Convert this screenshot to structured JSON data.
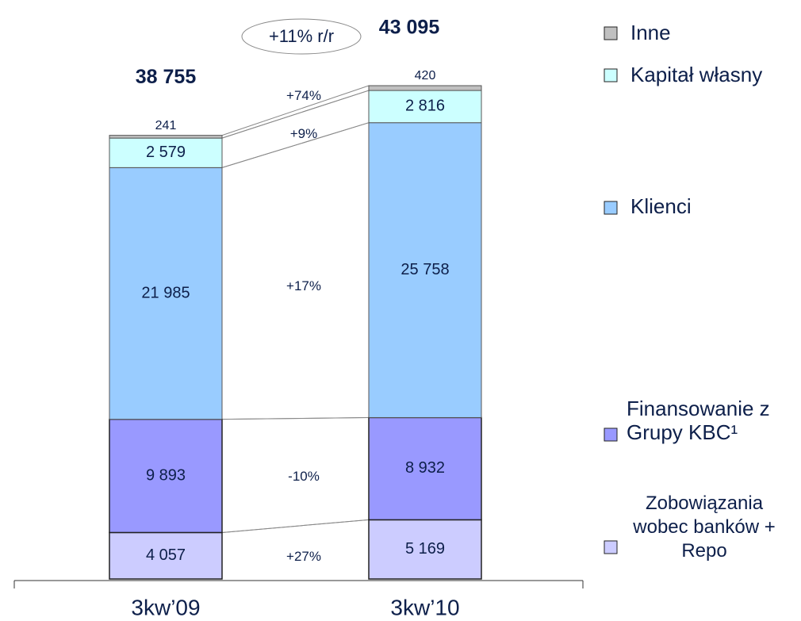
{
  "chart_data": {
    "type": "bar",
    "stacked": true,
    "categories": [
      "3kw’09",
      "3kw’10"
    ],
    "series": [
      {
        "name": "Zobowiązania wobec banków + Repo",
        "color": "#ccccff",
        "values": [
          4057,
          5169
        ],
        "value_labels": [
          "4 057",
          "5 169"
        ]
      },
      {
        "name": "Finansowanie z Grupy KBC¹",
        "color": "#9999ff",
        "values": [
          9893,
          8932
        ],
        "value_labels": [
          "9 893",
          "8 932"
        ]
      },
      {
        "name": "Klienci",
        "color": "#99ccff",
        "values": [
          21985,
          25758
        ],
        "value_labels": [
          "21 985",
          "25 758"
        ]
      },
      {
        "name": "Kapitał własny",
        "color": "#ccffff",
        "values": [
          2579,
          2816
        ],
        "value_labels": [
          "2 579",
          "2 816"
        ]
      },
      {
        "name": "Inne",
        "color": "#c0c0c0",
        "values": [
          241,
          420
        ],
        "value_labels": [
          "241",
          "420"
        ]
      }
    ],
    "totals": [
      38755,
      43095
    ],
    "total_labels": [
      "38 755",
      "43 095"
    ],
    "yoy_label": "+11% r/r",
    "change_labels": [
      "+27%",
      "-10%",
      "+17%",
      "+9%",
      "+74%"
    ]
  }
}
